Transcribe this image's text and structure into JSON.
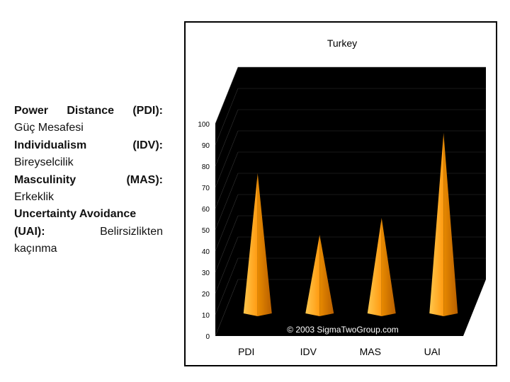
{
  "definitions": [
    {
      "parts": [
        {
          "text": "Power",
          "bold": true
        },
        {
          "text": "Distance",
          "bold": true
        },
        {
          "text": "(PDI):",
          "bold": true
        }
      ]
    },
    {
      "parts": [
        {
          "text": "Güç Mesafesi",
          "bold": false
        }
      ]
    },
    {
      "parts": [
        {
          "text": "Individualism",
          "bold": true
        },
        {
          "text": "(IDV):",
          "bold": true
        }
      ]
    },
    {
      "parts": [
        {
          "text": "Bireyselcilik",
          "bold": false
        }
      ]
    },
    {
      "parts": [
        {
          "text": "Masculinity",
          "bold": true
        },
        {
          "text": "(MAS):",
          "bold": true
        }
      ]
    },
    {
      "parts": [
        {
          "text": "Erkeklik",
          "bold": false
        }
      ]
    },
    {
      "parts": [
        {
          "text": "Uncertainty Avoidance",
          "bold": true
        }
      ]
    },
    {
      "parts": [
        {
          "text": "(UAI):",
          "bold": true
        },
        {
          "text": "Belirsizlikten",
          "bold": false
        }
      ]
    },
    {
      "parts": [
        {
          "text": "kaçınma",
          "bold": false
        }
      ]
    }
  ],
  "chart_data": {
    "type": "bar",
    "title": "Turkey",
    "categories": [
      "PDI",
      "IDV",
      "MAS",
      "UAI"
    ],
    "values": [
      66,
      37,
      45,
      85
    ],
    "ylim": [
      0,
      100
    ],
    "yticks": [
      0,
      10,
      20,
      30,
      40,
      50,
      60,
      70,
      80,
      90,
      100
    ],
    "copyright": "© 2003 SigmaTwoGroup.com",
    "colors": {
      "wall": "#000000",
      "bar_light": "#ffb733",
      "bar_dark": "#e07800",
      "bar_base": "#c96a00"
    }
  }
}
